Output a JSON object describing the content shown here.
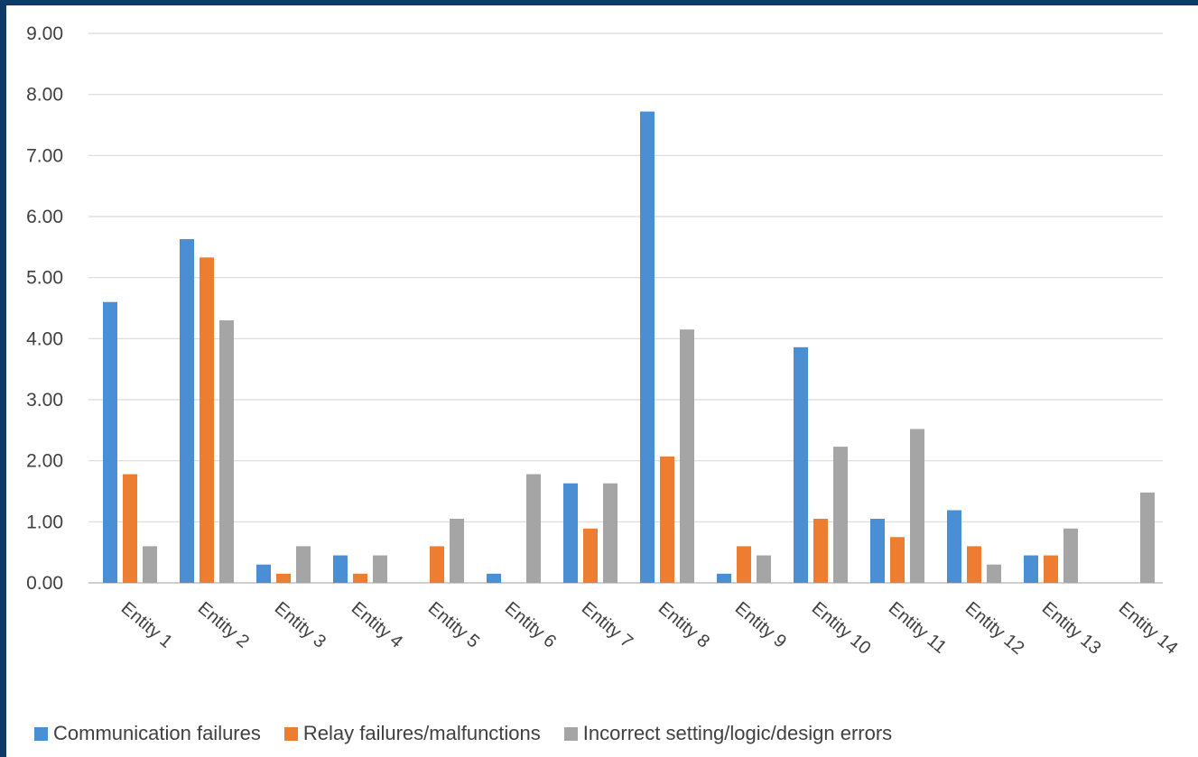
{
  "chart_data": {
    "type": "bar",
    "categories": [
      "Entity 1",
      "Entity 2",
      "Entity 3",
      "Entity 4",
      "Entity 5",
      "Entity 6",
      "Entity 7",
      "Entity 8",
      "Entity 9",
      "Entity 10",
      "Entity 11",
      "Entity 12",
      "Entity 13",
      "Entity 14"
    ],
    "series": [
      {
        "name": "Communication failures",
        "color": "#4a8fd4",
        "values": [
          4.6,
          5.63,
          0.3,
          0.45,
          0,
          0.15,
          1.63,
          7.72,
          0.15,
          3.86,
          1.05,
          1.19,
          0.45,
          0
        ]
      },
      {
        "name": "Relay failures/malfunctions",
        "color": "#ed7d31",
        "values": [
          1.78,
          5.33,
          0.15,
          0.15,
          0.6,
          0,
          0.89,
          2.07,
          0.6,
          1.05,
          0.75,
          0.6,
          0.45,
          0
        ]
      },
      {
        "name": "Incorrect setting/logic/design errors",
        "color": "#a5a5a5",
        "values": [
          0.6,
          4.3,
          0.6,
          0.45,
          1.05,
          1.78,
          1.63,
          4.15,
          0.45,
          2.23,
          2.52,
          0.3,
          0.89,
          1.48
        ]
      }
    ],
    "y_ticks": [
      "0.00",
      "1.00",
      "2.00",
      "3.00",
      "4.00",
      "5.00",
      "6.00",
      "7.00",
      "8.00",
      "9.00"
    ],
    "ylim": [
      0,
      9
    ],
    "grid": true,
    "legend_position": "bottom"
  }
}
